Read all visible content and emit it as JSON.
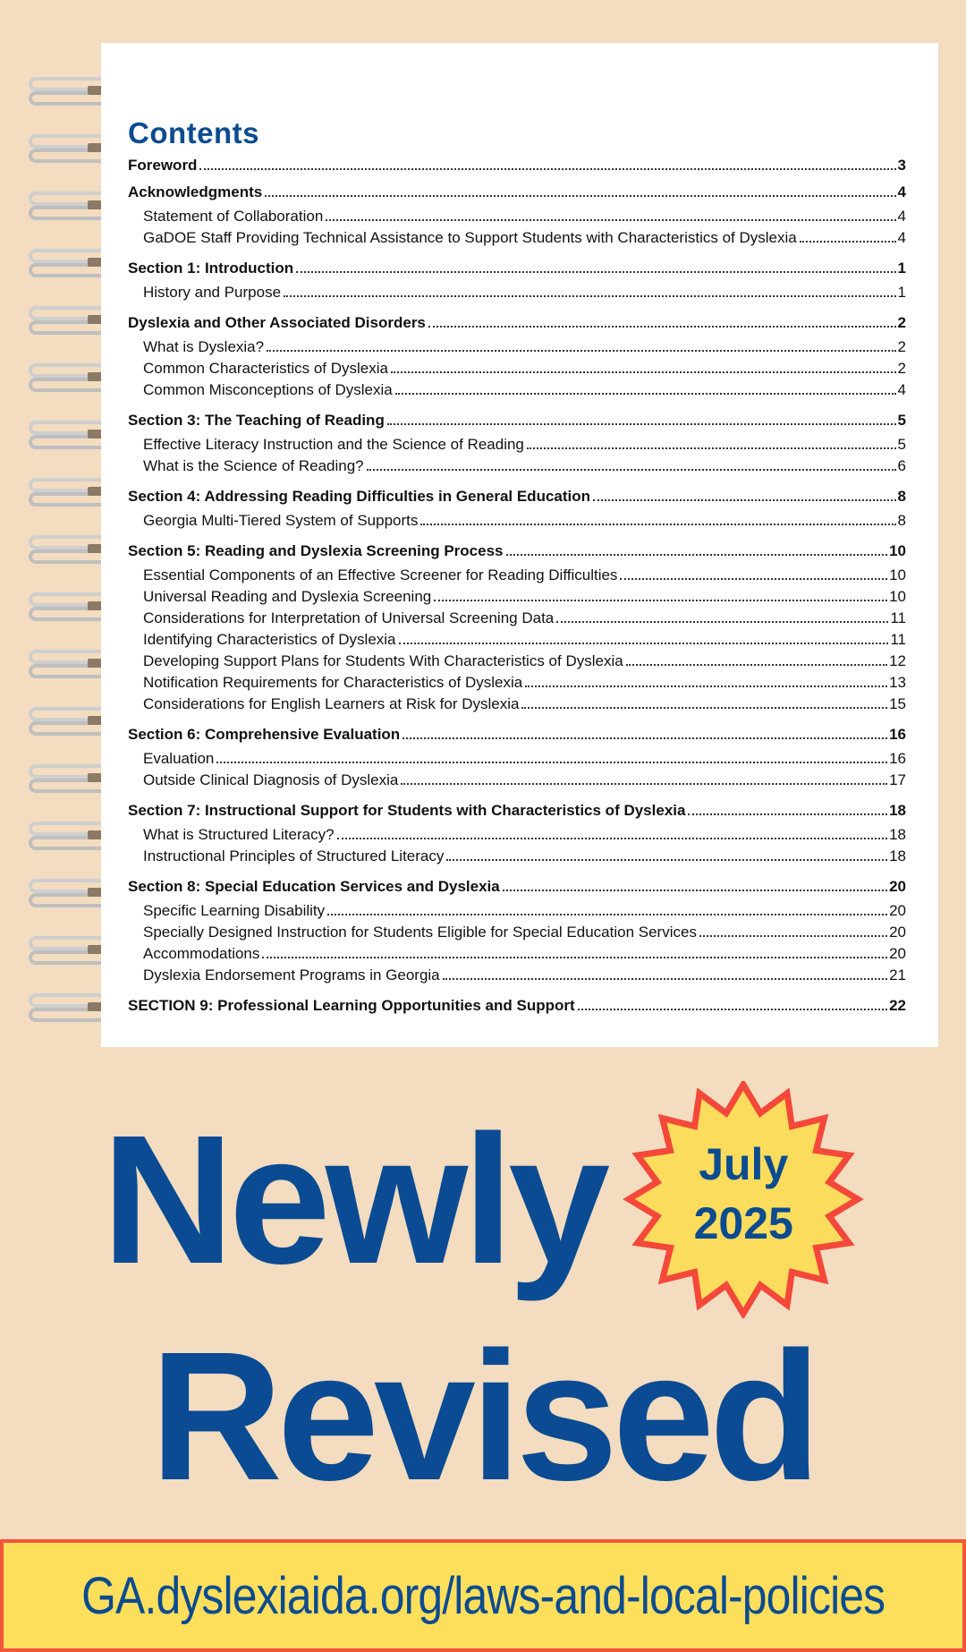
{
  "contents_title": "Contents",
  "toc": [
    {
      "level": "section",
      "title": "Foreword",
      "page": "3"
    },
    {
      "level": "section",
      "title": "Acknowledgments",
      "page": "4"
    },
    {
      "level": "sub",
      "title": "Statement of Collaboration",
      "page": "4"
    },
    {
      "level": "sub",
      "title": "GaDOE Staff Providing Technical Assistance to Support Students with Characteristics of Dyslexia",
      "page": "4"
    },
    {
      "level": "section",
      "title": "Section 1: Introduction",
      "page": "1"
    },
    {
      "level": "sub",
      "title": "History and Purpose",
      "page": "1"
    },
    {
      "level": "section",
      "title": "Dyslexia and Other Associated Disorders",
      "page": "2"
    },
    {
      "level": "sub",
      "title": "What is Dyslexia?",
      "page": "2"
    },
    {
      "level": "sub",
      "title": "Common Characteristics of Dyslexia",
      "page": "2"
    },
    {
      "level": "sub",
      "title": "Common Misconceptions of Dyslexia",
      "page": "4"
    },
    {
      "level": "section",
      "title": "Section 3: The Teaching of Reading",
      "page": "5"
    },
    {
      "level": "sub",
      "title": "Effective Literacy Instruction and the Science of Reading",
      "page": "5"
    },
    {
      "level": "sub",
      "title": "What is the Science of Reading?",
      "page": "6"
    },
    {
      "level": "section",
      "title": "Section 4: Addressing Reading Difficulties in General Education",
      "page": "8"
    },
    {
      "level": "sub",
      "title": "Georgia Multi-Tiered System of Supports",
      "page": "8"
    },
    {
      "level": "section",
      "title": "Section 5: Reading and Dyslexia Screening Process",
      "page": "10"
    },
    {
      "level": "sub",
      "title": "Essential Components of an Effective Screener for Reading Difficulties",
      "page": "10"
    },
    {
      "level": "sub",
      "title": "Universal Reading and Dyslexia Screening",
      "page": "10"
    },
    {
      "level": "sub",
      "title": "Considerations for Interpretation of Universal Screening Data",
      "page": "11"
    },
    {
      "level": "sub",
      "title": "Identifying Characteristics of Dyslexia",
      "page": "11"
    },
    {
      "level": "sub",
      "title": "Developing Support Plans for Students With Characteristics of Dyslexia",
      "page": "12"
    },
    {
      "level": "sub",
      "title": "Notification Requirements for Characteristics of Dyslexia",
      "page": "13"
    },
    {
      "level": "sub",
      "title": "Considerations for English Learners at Risk for Dyslexia",
      "page": "15"
    },
    {
      "level": "section",
      "title": "Section 6: Comprehensive Evaluation",
      "page": "16"
    },
    {
      "level": "sub",
      "title": "Evaluation",
      "page": "16"
    },
    {
      "level": "sub",
      "title": "Outside Clinical Diagnosis of Dyslexia",
      "page": "17"
    },
    {
      "level": "section",
      "title": "Section 7: Instructional Support for Students with Characteristics of Dyslexia",
      "page": "18"
    },
    {
      "level": "sub",
      "title": "What is Structured Literacy?",
      "page": "18"
    },
    {
      "level": "sub",
      "title": "Instructional Principles of Structured Literacy",
      "page": "18"
    },
    {
      "level": "section",
      "title": "Section 8: Special Education Services and Dyslexia",
      "page": "20"
    },
    {
      "level": "sub",
      "title": "Specific Learning Disability",
      "page": "20"
    },
    {
      "level": "sub",
      "title": "Specially Designed Instruction for Students Eligible for Special Education Services",
      "page": "20"
    },
    {
      "level": "sub",
      "title": "Accommodations",
      "page": "20"
    },
    {
      "level": "sub",
      "title": "Dyslexia Endorsement Programs in Georgia",
      "page": "21"
    },
    {
      "level": "section",
      "title": "SECTION 9: Professional Learning Opportunities and Support",
      "page": "22"
    }
  ],
  "badge": {
    "month": "July",
    "year": "2025"
  },
  "overlay": {
    "line1": "Newly",
    "line2": "Revised"
  },
  "banner": {
    "url": "GA.dyslexiaida.org/laws-and-local-policies"
  },
  "colors": {
    "brand_blue": "#0b4b8f",
    "badge_fill": "#fcdc5c",
    "badge_stroke": "#f4483a",
    "banner_fill": "#fedf5c",
    "background": "#f3dcc0"
  }
}
